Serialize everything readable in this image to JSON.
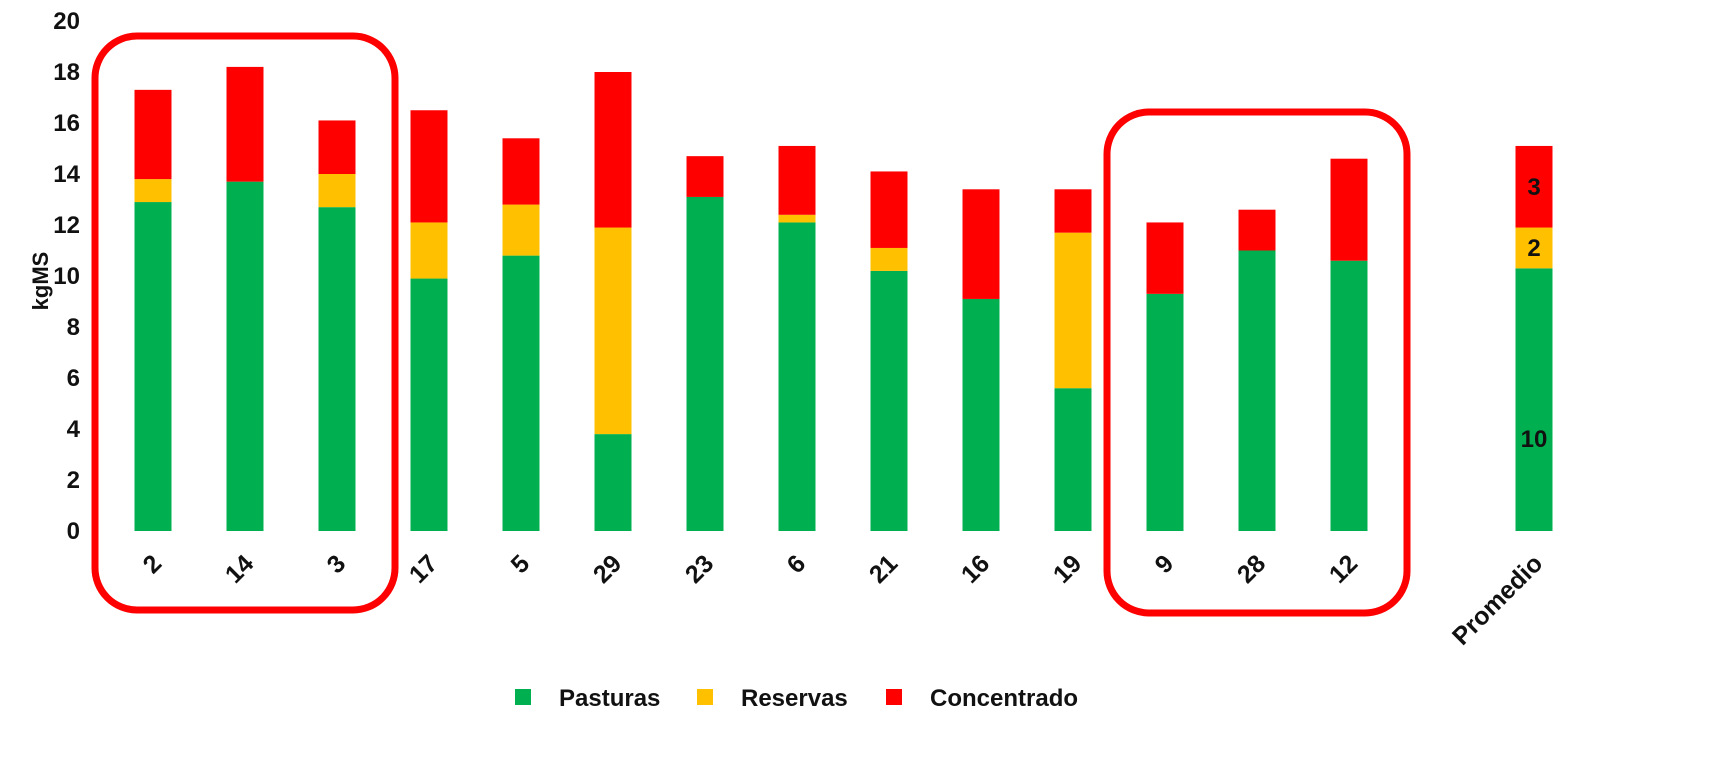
{
  "chart_data": {
    "type": "bar",
    "stacked": true,
    "ylabel": "kgMS",
    "xlabel": "",
    "ylim": [
      0,
      20
    ],
    "yticks": [
      "0",
      "2",
      "4",
      "6",
      "8",
      "10",
      "12",
      "14",
      "16",
      "18",
      "20"
    ],
    "grid": false,
    "legend_position": "bottom",
    "categories": [
      "2",
      "14",
      "3",
      "17",
      "5",
      "29",
      "23",
      "6",
      "21",
      "16",
      "19",
      "9",
      "28",
      "12",
      "Promedio"
    ],
    "series": [
      {
        "name": "Pasturas",
        "color": "#00B050",
        "values": [
          12.9,
          13.7,
          12.7,
          9.9,
          10.8,
          3.8,
          13.1,
          12.1,
          10.2,
          9.1,
          5.6,
          9.3,
          11.0,
          10.6,
          10.3
        ]
      },
      {
        "name": "Reservas",
        "color": "#FFC000",
        "values": [
          0.9,
          0,
          1.3,
          2.2,
          2.0,
          8.1,
          0,
          0.3,
          0.9,
          0,
          6.1,
          0,
          0,
          0,
          1.6
        ]
      },
      {
        "name": "Concentrado",
        "color": "#FF0000",
        "values": [
          3.5,
          4.5,
          2.1,
          4.4,
          2.6,
          6.1,
          1.6,
          2.7,
          3.0,
          4.3,
          1.7,
          2.8,
          1.6,
          4.0,
          3.2
        ]
      }
    ],
    "data_labels": [
      {
        "category": "Promedio",
        "series": "Pasturas",
        "text": "10"
      },
      {
        "category": "Promedio",
        "series": "Reservas",
        "text": "2"
      },
      {
        "category": "Promedio",
        "series": "Concentrado",
        "text": "3"
      }
    ],
    "highlight_groups": [
      {
        "categories": [
          "2",
          "14",
          "3"
        ],
        "color": "#FF0000"
      },
      {
        "categories": [
          "9",
          "28",
          "12"
        ],
        "color": "#FF0000"
      }
    ]
  }
}
